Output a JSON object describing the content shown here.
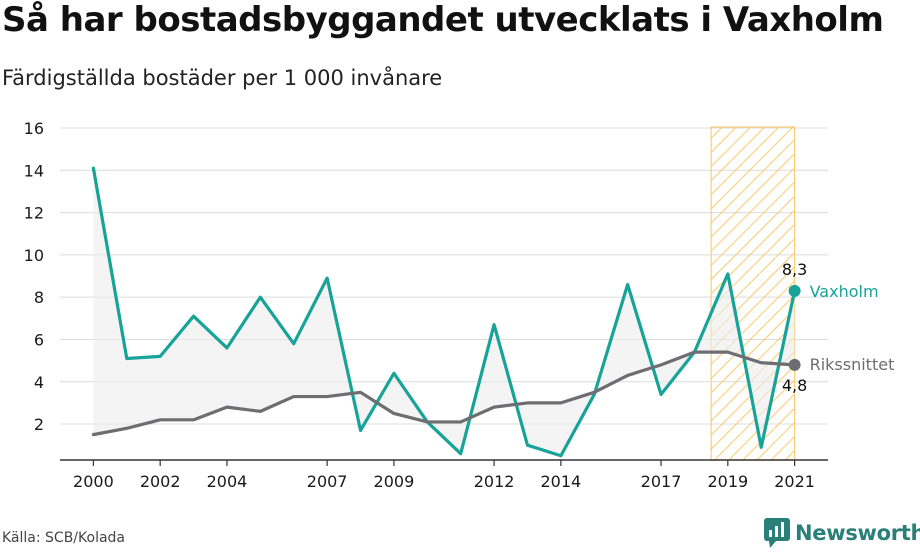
{
  "title": "Så har bostadsbyggandet utvecklats i Vaxholm",
  "subtitle": "Färdigställda bostäder per 1 000 invånare",
  "source": "Källa: SCB/Kolada",
  "brand": "Newsworthy",
  "colors": {
    "vaxholm": "#17a398",
    "riks": "#6d6d72",
    "highlight": "#f7c96b",
    "grid": "#dcdcdc",
    "area": "#ececec"
  },
  "chart_data": {
    "type": "line",
    "x": [
      2000,
      2001,
      2002,
      2003,
      2004,
      2005,
      2006,
      2007,
      2008,
      2009,
      2010,
      2011,
      2012,
      2013,
      2014,
      2015,
      2016,
      2017,
      2018,
      2019,
      2020,
      2021
    ],
    "series": [
      {
        "name": "Vaxholm",
        "values": [
          14.1,
          5.1,
          5.2,
          7.1,
          5.6,
          8.0,
          5.8,
          8.9,
          1.7,
          4.4,
          2.1,
          0.6,
          6.7,
          1.0,
          0.5,
          3.4,
          8.6,
          3.4,
          5.4,
          9.1,
          0.9,
          8.3
        ]
      },
      {
        "name": "Rikssnittet",
        "values": [
          1.5,
          1.8,
          2.2,
          2.2,
          2.8,
          2.6,
          3.3,
          3.3,
          3.5,
          2.5,
          2.1,
          2.1,
          2.8,
          3.0,
          3.0,
          3.5,
          4.3,
          4.8,
          5.4,
          5.4,
          4.9,
          4.8
        ]
      }
    ],
    "end_labels": {
      "vaxholm": "8,3",
      "riks": "4,8"
    },
    "xticks": [
      "2000",
      "2002",
      "2004",
      "2007",
      "2009",
      "2012",
      "2014",
      "2017",
      "2019",
      "2021"
    ],
    "yticks": [
      "2",
      "4",
      "6",
      "8",
      "10",
      "12",
      "14",
      "16"
    ],
    "ylim": [
      0.3,
      16
    ],
    "xlim": [
      1999,
      2022
    ],
    "highlight_range": [
      2018.5,
      2021
    ],
    "grid": true,
    "legend": "end-of-line labels"
  }
}
